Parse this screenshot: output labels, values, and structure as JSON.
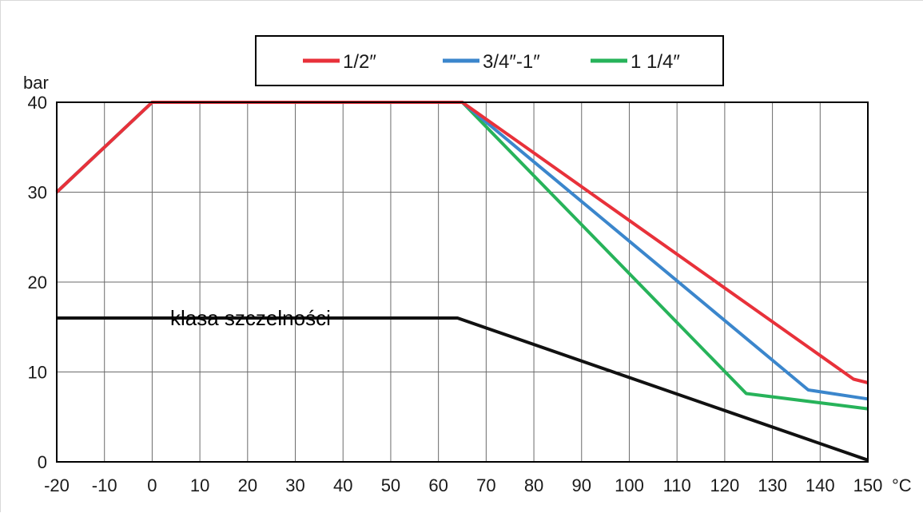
{
  "chart_data": {
    "type": "line",
    "xlabel": "°C",
    "ylabel": "bar",
    "xlim": [
      -20,
      150
    ],
    "ylim": [
      0,
      40
    ],
    "x_ticks": [
      -20,
      -10,
      0,
      10,
      20,
      30,
      40,
      50,
      60,
      70,
      80,
      90,
      100,
      110,
      120,
      130,
      140,
      150
    ],
    "y_ticks": [
      0,
      10,
      20,
      30,
      40
    ],
    "grid": true,
    "legend_position": "top-center",
    "annotation": "klasa szczelności",
    "series": [
      {
        "name": "1/2″",
        "color": "#e8313a",
        "points": [
          [
            -20,
            30
          ],
          [
            0,
            40
          ],
          [
            65,
            40
          ],
          [
            147,
            9.2
          ],
          [
            150,
            8.8
          ]
        ]
      },
      {
        "name": "3/4″-1″",
        "color": "#3b86cc",
        "points": [
          [
            -20,
            30
          ],
          [
            0,
            40
          ],
          [
            65,
            40
          ],
          [
            137.5,
            8
          ],
          [
            150,
            7
          ]
        ]
      },
      {
        "name": "1 1/4″",
        "color": "#27b35a",
        "points": [
          [
            -20,
            30
          ],
          [
            0,
            40
          ],
          [
            65,
            40
          ],
          [
            124.5,
            7.6
          ],
          [
            150,
            5.9
          ]
        ]
      },
      {
        "name": "",
        "color": "#111111",
        "points": [
          [
            -20,
            16
          ],
          [
            64,
            16
          ],
          [
            150,
            0.2
          ]
        ]
      }
    ]
  }
}
